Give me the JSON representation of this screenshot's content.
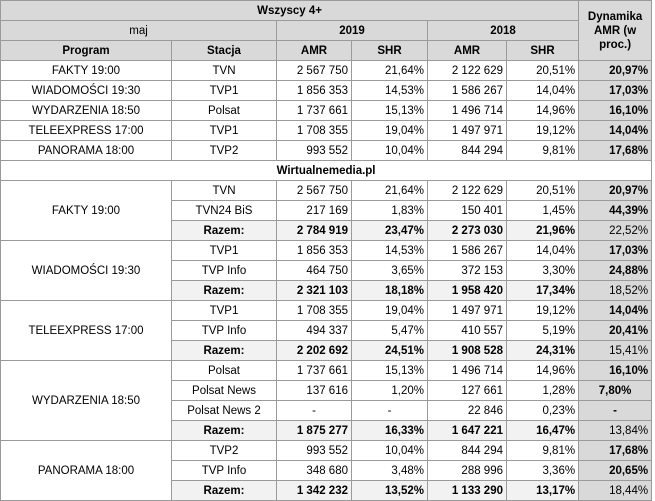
{
  "header": {
    "title": "Wszyscy 4+",
    "month": "maj",
    "dynamics_label": "Dynamika AMR (w proc.)",
    "year_2019": "2019",
    "year_2018": "2018",
    "col_program": "Program",
    "col_station": "Stacja",
    "col_amr": "AMR",
    "col_shr": "SHR"
  },
  "top_rows": [
    {
      "program": "FAKTY 19:00",
      "station": "TVN",
      "amr19": "2 567 750",
      "shr19": "21,64%",
      "amr18": "2 122 629",
      "shr18": "20,51%",
      "dyn": "20,97%"
    },
    {
      "program": "WIADOMOŚCI 19:30",
      "station": "TVP1",
      "amr19": "1 856 353",
      "shr19": "14,53%",
      "amr18": "1 586 267",
      "shr18": "14,04%",
      "dyn": "17,03%"
    },
    {
      "program": "WYDARZENIA 18:50",
      "station": "Polsat",
      "amr19": "1 737 661",
      "shr19": "15,13%",
      "amr18": "1 496 714",
      "shr18": "14,96%",
      "dyn": "16,10%"
    },
    {
      "program": "TELEEXPRESS 17:00",
      "station": "TVP1",
      "amr19": "1 708 355",
      "shr19": "19,04%",
      "amr18": "1 497 971",
      "shr18": "19,12%",
      "dyn": "14,04%"
    },
    {
      "program": "PANORAMA 18:00",
      "station": "TVP2",
      "amr19": "993 552",
      "shr19": "10,04%",
      "amr18": "844 294",
      "shr18": "9,81%",
      "dyn": "17,68%"
    }
  ],
  "section_label": "Wirtualnemedia.pl",
  "groups": {
    "fakty": {
      "program": "FAKTY 19:00",
      "rows": [
        {
          "station": "TVN",
          "amr19": "2 567 750",
          "shr19": "21,64%",
          "amr18": "2 122 629",
          "shr18": "20,51%",
          "dyn": "20,97%"
        },
        {
          "station": "TVN24 BiS",
          "amr19": "217 169",
          "shr19": "1,83%",
          "amr18": "150 401",
          "shr18": "1,45%",
          "dyn": "44,39%"
        }
      ],
      "total": {
        "station": "Razem:",
        "amr19": "2 784 919",
        "shr19": "23,47%",
        "amr18": "2 273 030",
        "shr18": "21,96%",
        "dyn": "22,52%"
      }
    },
    "wiadomosci": {
      "program": "WIADOMOŚCI 19:30",
      "rows": [
        {
          "station": "TVP1",
          "amr19": "1 856 353",
          "shr19": "14,53%",
          "amr18": "1 586 267",
          "shr18": "14,04%",
          "dyn": "17,03%"
        },
        {
          "station": "TVP Info",
          "amr19": "464 750",
          "shr19": "3,65%",
          "amr18": "372 153",
          "shr18": "3,30%",
          "dyn": "24,88%"
        }
      ],
      "total": {
        "station": "Razem:",
        "amr19": "2 321 103",
        "shr19": "18,18%",
        "amr18": "1 958 420",
        "shr18": "17,34%",
        "dyn": "18,52%"
      }
    },
    "teleexpress": {
      "program": "TELEEXPRESS 17:00",
      "rows": [
        {
          "station": "TVP1",
          "amr19": "1 708 355",
          "shr19": "19,04%",
          "amr18": "1 497 971",
          "shr18": "19,12%",
          "dyn": "14,04%"
        },
        {
          "station": "TVP Info",
          "amr19": "494 337",
          "shr19": "5,47%",
          "amr18": "410 557",
          "shr18": "5,19%",
          "dyn": "20,41%"
        }
      ],
      "total": {
        "station": "Razem:",
        "amr19": "2 202 692",
        "shr19": "24,51%",
        "amr18": "1 908 528",
        "shr18": "24,31%",
        "dyn": "15,41%"
      }
    },
    "wydarzenia": {
      "program": "WYDARZENIA 18:50",
      "rows": [
        {
          "station": "Polsat",
          "amr19": "1 737 661",
          "shr19": "15,13%",
          "amr18": "1 496 714",
          "shr18": "14,96%",
          "dyn": "16,10%"
        },
        {
          "station": "Polsat News",
          "amr19": "137 616",
          "shr19": "1,20%",
          "amr18": "127 661",
          "shr18": "1,28%",
          "dyn": "7,80%"
        },
        {
          "station": "Polsat News 2",
          "amr19": "-",
          "shr19": "-",
          "amr18": "22 846",
          "shr18": "0,23%",
          "dyn": "-"
        }
      ],
      "total": {
        "station": "Razem:",
        "amr19": "1 875 277",
        "shr19": "16,33%",
        "amr18": "1 647 221",
        "shr18": "16,47%",
        "dyn": "13,84%"
      }
    },
    "panorama": {
      "program": "PANORAMA 18:00",
      "rows": [
        {
          "station": "TVP2",
          "amr19": "993 552",
          "shr19": "10,04%",
          "amr18": "844 294",
          "shr18": "9,81%",
          "dyn": "17,68%"
        },
        {
          "station": "TVP Info",
          "amr19": "348 680",
          "shr19": "3,48%",
          "amr18": "288 996",
          "shr18": "3,36%",
          "dyn": "20,65%"
        }
      ],
      "total": {
        "station": "Razem:",
        "amr19": "1 342 232",
        "shr19": "13,52%",
        "amr18": "1 133 290",
        "shr18": "13,17%",
        "dyn": "18,44%"
      }
    }
  },
  "colors": {
    "header_bg": "#d9d9d9",
    "total_bg": "#f2f2f2",
    "border": "#9a9a9a"
  }
}
